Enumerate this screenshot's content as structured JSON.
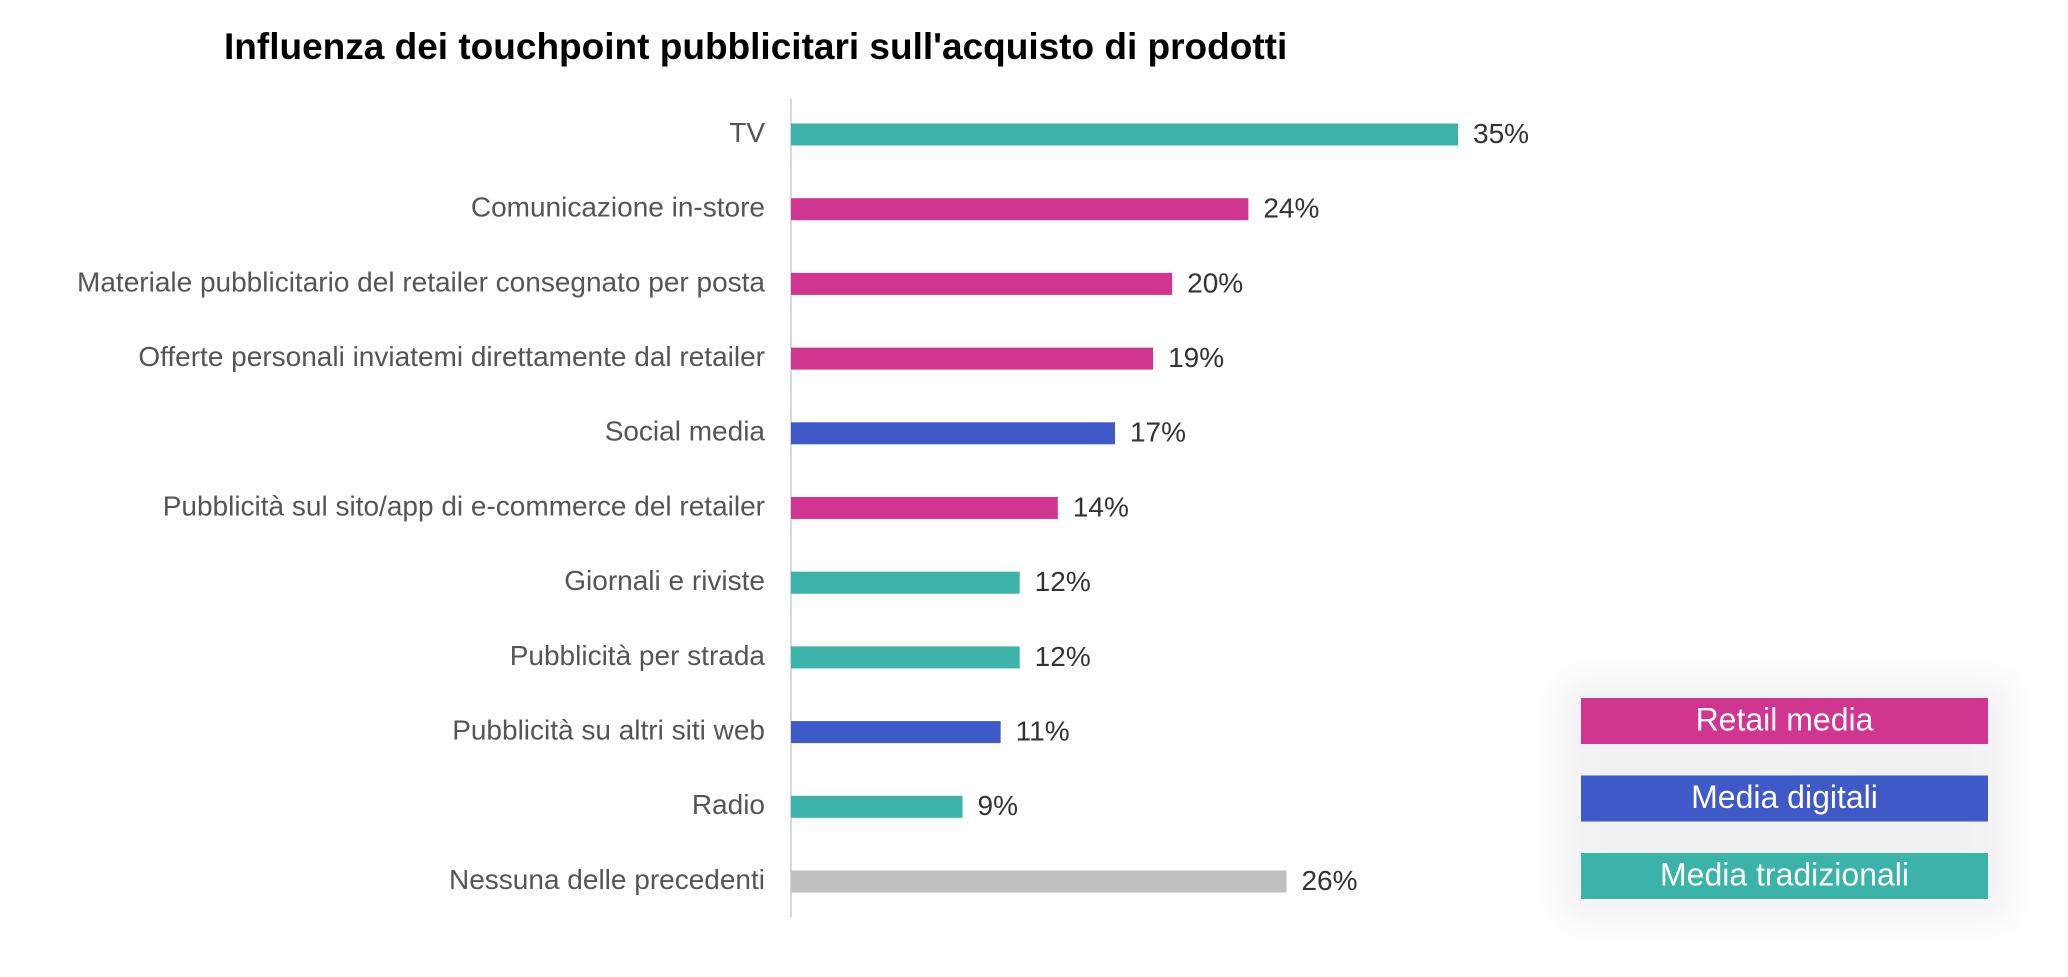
{
  "chart_data": {
    "type": "hbar",
    "title": "Influenza dei touchpoint pubblicitari sull'acquisto di prodotti",
    "categories": [
      "TV",
      "Comunicazione in-store",
      "Materiale pubblicitario del retailer consegnato per posta",
      "Offerte personali inviatemi direttamente dal retailer",
      "Social media",
      "Pubblicità sul sito/app di e-commerce del retailer",
      "Giornali e riviste",
      "Pubblicità per strada",
      "Pubblicità su altri siti web",
      "Radio",
      "Nessuna delle precedenti"
    ],
    "values": [
      35,
      24,
      20,
      19,
      17,
      14,
      12,
      12,
      11,
      9,
      26
    ],
    "value_labels": [
      "35%",
      "24%",
      "20%",
      "19%",
      "17%",
      "14%",
      "12%",
      "12%",
      "11%",
      "9%",
      "26%"
    ],
    "colors": [
      "#3bb3a8",
      "#d0358f",
      "#d0358f",
      "#d0358f",
      "#4059c9",
      "#d0358f",
      "#3bb3a8",
      "#3bb3a8",
      "#4059c9",
      "#3bb3a8",
      "#bfbfbf"
    ],
    "legend": [
      {
        "name": "Retail media",
        "color": "#d0358f"
      },
      {
        "name": "Media digitali",
        "color": "#4059c9"
      },
      {
        "name": "Media tradizionali",
        "color": "#3bb3a8"
      }
    ],
    "legend_position": "lower right"
  }
}
